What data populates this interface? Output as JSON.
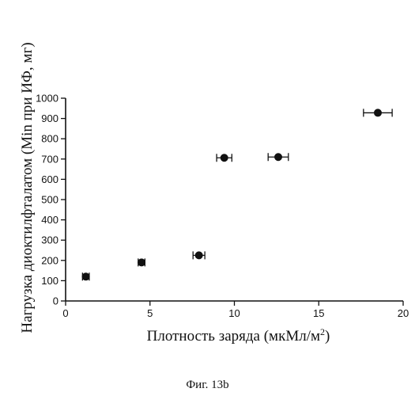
{
  "chart_data": {
    "type": "scatter",
    "xlabel_main": "Плотность заряда (мкМл/м",
    "xlabel_sup": "2",
    "xlabel_end": ")",
    "ylabel": "Нагрузка диоктилфталатом (Min при ИФ, мг)",
    "xlim": [
      0,
      20
    ],
    "ylim": [
      0,
      1000
    ],
    "xticks": [
      0,
      5,
      10,
      15,
      20
    ],
    "yticks": [
      0,
      100,
      200,
      300,
      400,
      500,
      600,
      700,
      800,
      900,
      1000
    ],
    "grid": false,
    "points": [
      {
        "x": 1.2,
        "y": 120,
        "xerr": 0.2,
        "yerr": 18
      },
      {
        "x": 4.5,
        "y": 190,
        "xerr": 0.2,
        "yerr": 12
      },
      {
        "x": 7.9,
        "y": 225,
        "xerr": 0.35,
        "yerr": 12
      },
      {
        "x": 9.4,
        "y": 706,
        "xerr": 0.45,
        "yerr": 10
      },
      {
        "x": 12.6,
        "y": 710,
        "xerr": 0.6,
        "yerr": 10
      },
      {
        "x": 18.5,
        "y": 928,
        "xerr": 0.85,
        "yerr": 10
      }
    ]
  },
  "caption": "Фиг. 13b"
}
